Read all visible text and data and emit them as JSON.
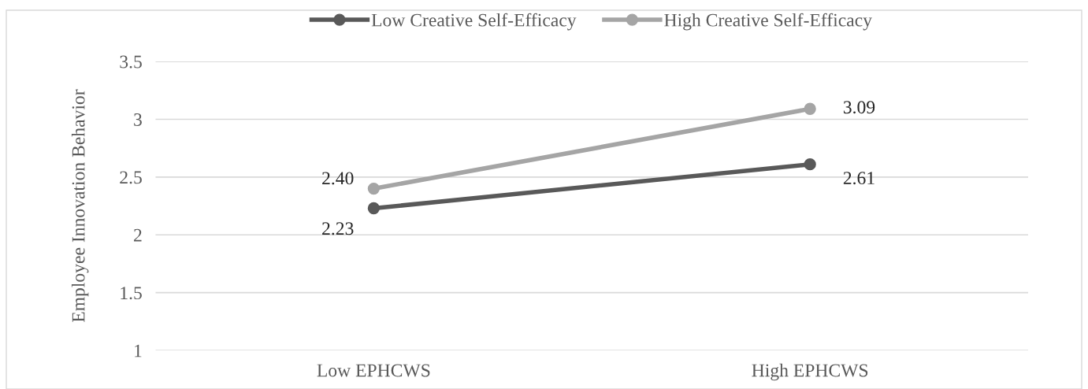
{
  "chart_data": {
    "type": "line",
    "ylabel": "Employee Innovation Behavior",
    "categories": [
      "Low EPHCWS",
      "High EPHCWS"
    ],
    "series": [
      {
        "name": "Low Creative Self-Efficacy",
        "color": "#595959",
        "values": [
          2.23,
          2.61
        ],
        "value_labels": [
          "2.23",
          "2.61"
        ]
      },
      {
        "name": "High Creative Self-Efficacy",
        "color": "#a5a5a5",
        "values": [
          2.4,
          3.09
        ],
        "value_labels": [
          "2.40",
          "3.09"
        ]
      }
    ],
    "ylim": [
      1,
      3.5
    ],
    "yticks": [
      1,
      1.5,
      2,
      2.5,
      3,
      3.5
    ],
    "grid": "y",
    "legend": "top",
    "marker": "circle",
    "line_style": "solid"
  }
}
